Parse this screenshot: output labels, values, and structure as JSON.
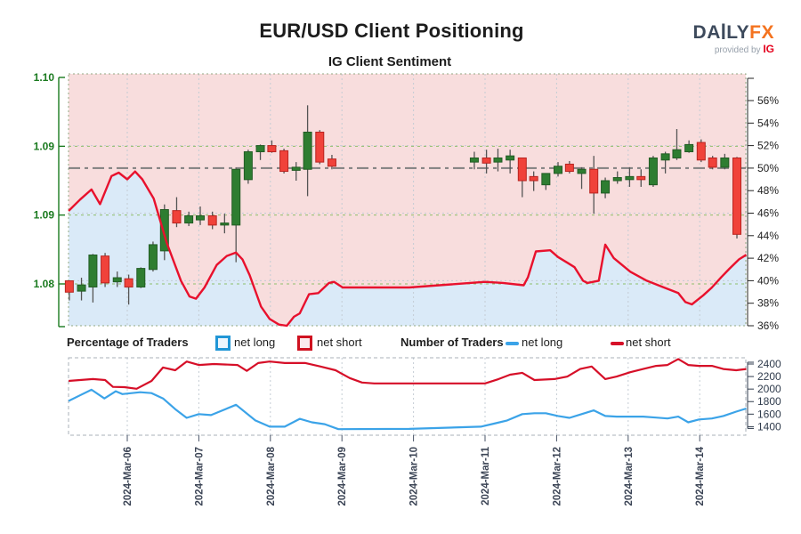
{
  "header": {
    "title": "EUR/USD Client Positioning",
    "subtitle": "IG Client Sentiment",
    "logo": {
      "da": "DA",
      "i": "I",
      "ly": "LY",
      "fx": "FX",
      "provided_by": "provided by",
      "ig": "IG"
    }
  },
  "legend": {
    "percentage_label": "Percentage of Traders",
    "number_label": "Number of Traders",
    "net_long_label": "net long",
    "net_short_label": "net short"
  },
  "colors": {
    "candle_up": "#2e7d31",
    "candle_up_border": "#225c24",
    "candle_down": "#f0423a",
    "candle_down_border": "#b92420",
    "wick": "#545454",
    "sentiment_line": "#e8112d",
    "net_long_line": "#3ba3e8",
    "net_short_line": "#d60f28",
    "fill_short_region": "#f8dddd",
    "fill_long_region": "#daeaf8",
    "price_axis": "#1a7a1f",
    "pct_axis": "#222222",
    "count_axis": "#2f3b4c",
    "date_labels": "#3b4455",
    "grid_green": "#8fbf6a",
    "grid_gray": "#c4ccd4",
    "ref_line": "#7f7f7f",
    "top_border": "#93a883",
    "bottom_border": "#a9b0b8"
  },
  "chart_data": [
    {
      "type": "candlestick",
      "title": "IG Client Sentiment",
      "x_axis": {
        "tick_labels": [
          "2024-Mar-06",
          "2024-Mar-07",
          "2024-Mar-08",
          "2024-Mar-09",
          "2024-Mar-10",
          "2024-Mar-11",
          "2024-Mar-12",
          "2024-Mar-13",
          "2024-Mar-14"
        ],
        "tick_t": [
          0,
          1,
          2,
          3,
          4,
          5,
          6,
          7,
          8
        ],
        "t_range": [
          -0.82,
          8.65
        ]
      },
      "price_axis": {
        "side": "left",
        "tick_labels": [
          "1.10",
          "1.09",
          "1.09",
          "1.08"
        ],
        "tick_values": [
          1.1,
          1.09333,
          1.08667,
          1.08
        ],
        "grid_values": [
          1.09333,
          1.08667,
          1.08
        ]
      },
      "pct_axis": {
        "side": "right",
        "tick_values": [
          56,
          54,
          52,
          50,
          48,
          46,
          44,
          42,
          40,
          38,
          36
        ],
        "suffix": "%",
        "grid_values": [
          52,
          46,
          40
        ],
        "reference_value": 50
      },
      "sentiment_net_short_pct": {
        "name": "net short",
        "points": [
          [
            -0.82,
            46.2
          ],
          [
            -0.66,
            47.2
          ],
          [
            -0.5,
            48.1
          ],
          [
            -0.38,
            46.8
          ],
          [
            -0.22,
            49.3
          ],
          [
            -0.12,
            49.6
          ],
          [
            0,
            49.0
          ],
          [
            0.11,
            49.7
          ],
          [
            0.21,
            49.0
          ],
          [
            0.37,
            47.3
          ],
          [
            0.55,
            43.4
          ],
          [
            0.75,
            40.0
          ],
          [
            0.87,
            38.6
          ],
          [
            0.96,
            38.4
          ],
          [
            1.08,
            39.4
          ],
          [
            1.25,
            41.4
          ],
          [
            1.39,
            42.2
          ],
          [
            1.52,
            42.5
          ],
          [
            1.61,
            41.9
          ],
          [
            1.71,
            40.5
          ],
          [
            1.87,
            37.7
          ],
          [
            1.99,
            36.6
          ],
          [
            2.12,
            36.1
          ],
          [
            2.23,
            36.0
          ],
          [
            2.33,
            36.8
          ],
          [
            2.41,
            37.1
          ],
          [
            2.54,
            38.8
          ],
          [
            2.67,
            38.9
          ],
          [
            2.82,
            39.8
          ],
          [
            2.89,
            39.9
          ],
          [
            3.01,
            39.4
          ],
          [
            3.94,
            39.4
          ],
          [
            5.0,
            39.9
          ],
          [
            5.25,
            39.8
          ],
          [
            5.54,
            39.6
          ],
          [
            5.6,
            40.3
          ],
          [
            5.71,
            42.6
          ],
          [
            5.91,
            42.7
          ],
          [
            6.02,
            42.1
          ],
          [
            6.15,
            41.6
          ],
          [
            6.25,
            41.2
          ],
          [
            6.37,
            40.0
          ],
          [
            6.43,
            39.8
          ],
          [
            6.59,
            40.0
          ],
          [
            6.68,
            43.2
          ],
          [
            6.8,
            42.0
          ],
          [
            7.03,
            40.8
          ],
          [
            7.26,
            40.0
          ],
          [
            7.46,
            39.5
          ],
          [
            7.7,
            38.9
          ],
          [
            7.8,
            38.1
          ],
          [
            7.89,
            37.9
          ],
          [
            8.05,
            38.7
          ],
          [
            8.17,
            39.4
          ],
          [
            8.3,
            40.3
          ],
          [
            8.42,
            41.1
          ],
          [
            8.55,
            41.9
          ],
          [
            8.65,
            42.3
          ]
        ]
      },
      "candles_ohlc": [
        [
          -0.81,
          1.0803,
          1.0803,
          1.0784,
          1.0792
        ],
        [
          -0.64,
          1.0793,
          1.0806,
          1.0784,
          1.0799
        ],
        [
          -0.48,
          1.0797,
          1.0829,
          1.0782,
          1.0828
        ],
        [
          -0.31,
          1.0827,
          1.083,
          1.0797,
          1.0801
        ],
        [
          -0.14,
          1.0802,
          1.0812,
          1.0797,
          1.0806
        ],
        [
          0.02,
          1.0805,
          1.0809,
          1.078,
          1.0797
        ],
        [
          0.19,
          1.0797,
          1.0816,
          1.0796,
          1.0815
        ],
        [
          0.36,
          1.0814,
          1.0841,
          1.0812,
          1.0838
        ],
        [
          0.52,
          1.0832,
          1.0877,
          1.0823,
          1.0872
        ],
        [
          0.69,
          1.0871,
          1.0884,
          1.0855,
          1.0859
        ],
        [
          0.86,
          1.0859,
          1.087,
          1.0856,
          1.0866
        ],
        [
          1.02,
          1.0862,
          1.0875,
          1.0857,
          1.0866
        ],
        [
          1.19,
          1.0866,
          1.087,
          1.0853,
          1.0857
        ],
        [
          1.36,
          1.0857,
          1.0868,
          1.0849,
          1.0859
        ],
        [
          1.52,
          1.0857,
          1.0913,
          1.0821,
          1.0911
        ],
        [
          1.69,
          1.0901,
          1.093,
          1.0897,
          1.0928
        ],
        [
          1.86,
          1.0928,
          1.0935,
          1.092,
          1.0934
        ],
        [
          2.02,
          1.0934,
          1.0939,
          1.0927,
          1.0928
        ],
        [
          2.19,
          1.0929,
          1.0931,
          1.0907,
          1.0909
        ],
        [
          2.36,
          1.091,
          1.0918,
          1.09,
          1.0913
        ],
        [
          2.52,
          1.0911,
          1.0973,
          1.0885,
          1.0947
        ],
        [
          2.69,
          1.0947,
          1.0949,
          1.0916,
          1.0918
        ],
        [
          2.86,
          1.0921,
          1.0925,
          1.0911,
          1.0914
        ],
        [
          4.85,
          1.0918,
          1.0928,
          1.0911,
          1.0922
        ],
        [
          5.02,
          1.0922,
          1.093,
          1.0907,
          1.0917
        ],
        [
          5.18,
          1.0918,
          1.0931,
          1.0909,
          1.0922
        ],
        [
          5.35,
          1.092,
          1.093,
          1.0907,
          1.0924
        ],
        [
          5.52,
          1.0922,
          1.0922,
          1.0884,
          1.09
        ],
        [
          5.68,
          1.0904,
          1.0909,
          1.089,
          1.09
        ],
        [
          5.85,
          1.0896,
          1.0907,
          1.0891,
          1.0907
        ],
        [
          6.02,
          1.0907,
          1.0918,
          1.0904,
          1.0914
        ],
        [
          6.18,
          1.0916,
          1.0919,
          1.0907,
          1.0909
        ],
        [
          6.35,
          1.0907,
          1.0913,
          1.0892,
          1.0911
        ],
        [
          6.52,
          1.0911,
          1.0924,
          1.0868,
          1.0888
        ],
        [
          6.68,
          1.0888,
          1.0903,
          1.0883,
          1.09
        ],
        [
          6.85,
          1.09,
          1.0909,
          1.0897,
          1.0903
        ],
        [
          7.02,
          1.0901,
          1.0913,
          1.0894,
          1.0904
        ],
        [
          7.18,
          1.0904,
          1.0911,
          1.0894,
          1.0901
        ],
        [
          7.35,
          1.0896,
          1.0924,
          1.0894,
          1.0922
        ],
        [
          7.52,
          1.092,
          1.0928,
          1.0907,
          1.0926
        ],
        [
          7.68,
          1.0922,
          1.095,
          1.092,
          1.093
        ],
        [
          7.85,
          1.0928,
          1.0939,
          1.0927,
          1.0935
        ],
        [
          8.02,
          1.0937,
          1.094,
          1.0918,
          1.092
        ],
        [
          8.18,
          1.0922,
          1.0924,
          1.0911,
          1.0913
        ],
        [
          8.35,
          1.0913,
          1.0926,
          1.0911,
          1.0922
        ],
        [
          8.52,
          1.0922,
          1.0923,
          1.0844,
          1.0848
        ]
      ]
    },
    {
      "type": "line",
      "count_axis": {
        "side": "right",
        "tick_values": [
          2400,
          2200,
          2000,
          1800,
          1600,
          1400
        ]
      },
      "series": [
        {
          "name": "net long",
          "points": [
            [
              -0.82,
              1810
            ],
            [
              -0.66,
              1900
            ],
            [
              -0.5,
              1990
            ],
            [
              -0.32,
              1850
            ],
            [
              -0.16,
              1965
            ],
            [
              -0.07,
              1920
            ],
            [
              0.18,
              1950
            ],
            [
              0.34,
              1935
            ],
            [
              0.5,
              1850
            ],
            [
              0.67,
              1680
            ],
            [
              0.83,
              1540
            ],
            [
              1.0,
              1600
            ],
            [
              1.17,
              1585
            ],
            [
              1.52,
              1750
            ],
            [
              1.79,
              1500
            ],
            [
              1.99,
              1400
            ],
            [
              2.2,
              1400
            ],
            [
              2.41,
              1525
            ],
            [
              2.58,
              1470
            ],
            [
              2.76,
              1440
            ],
            [
              2.95,
              1360
            ],
            [
              3.94,
              1365
            ],
            [
              4.94,
              1400
            ],
            [
              5.15,
              1455
            ],
            [
              5.31,
              1500
            ],
            [
              5.52,
              1600
            ],
            [
              5.69,
              1615
            ],
            [
              5.85,
              1615
            ],
            [
              6.02,
              1570
            ],
            [
              6.18,
              1540
            ],
            [
              6.35,
              1600
            ],
            [
              6.52,
              1660
            ],
            [
              6.68,
              1570
            ],
            [
              6.84,
              1560
            ],
            [
              7.03,
              1560
            ],
            [
              7.21,
              1560
            ],
            [
              7.39,
              1545
            ],
            [
              7.55,
              1530
            ],
            [
              7.7,
              1560
            ],
            [
              7.84,
              1470
            ],
            [
              7.99,
              1515
            ],
            [
              8.17,
              1530
            ],
            [
              8.33,
              1570
            ],
            [
              8.51,
              1640
            ],
            [
              8.65,
              1690
            ]
          ]
        },
        {
          "name": "net short",
          "points": [
            [
              -0.82,
              2130
            ],
            [
              -0.66,
              2145
            ],
            [
              -0.48,
              2160
            ],
            [
              -0.31,
              2145
            ],
            [
              -0.2,
              2035
            ],
            [
              -0.04,
              2030
            ],
            [
              0.13,
              2005
            ],
            [
              0.34,
              2130
            ],
            [
              0.5,
              2345
            ],
            [
              0.67,
              2300
            ],
            [
              0.83,
              2440
            ],
            [
              1.0,
              2385
            ],
            [
              1.21,
              2400
            ],
            [
              1.54,
              2385
            ],
            [
              1.67,
              2290
            ],
            [
              1.83,
              2415
            ],
            [
              1.99,
              2440
            ],
            [
              2.2,
              2415
            ],
            [
              2.49,
              2415
            ],
            [
              2.7,
              2360
            ],
            [
              2.91,
              2300
            ],
            [
              3.11,
              2175
            ],
            [
              3.28,
              2105
            ],
            [
              3.45,
              2090
            ],
            [
              5.0,
              2090
            ],
            [
              5.19,
              2160
            ],
            [
              5.35,
              2230
            ],
            [
              5.52,
              2260
            ],
            [
              5.69,
              2145
            ],
            [
              5.97,
              2160
            ],
            [
              6.15,
              2200
            ],
            [
              6.33,
              2320
            ],
            [
              6.49,
              2360
            ],
            [
              6.68,
              2160
            ],
            [
              6.84,
              2200
            ],
            [
              7.03,
              2270
            ],
            [
              7.21,
              2320
            ],
            [
              7.39,
              2370
            ],
            [
              7.55,
              2385
            ],
            [
              7.7,
              2480
            ],
            [
              7.84,
              2385
            ],
            [
              7.99,
              2370
            ],
            [
              8.17,
              2370
            ],
            [
              8.33,
              2320
            ],
            [
              8.51,
              2300
            ],
            [
              8.65,
              2320
            ]
          ]
        }
      ]
    }
  ]
}
